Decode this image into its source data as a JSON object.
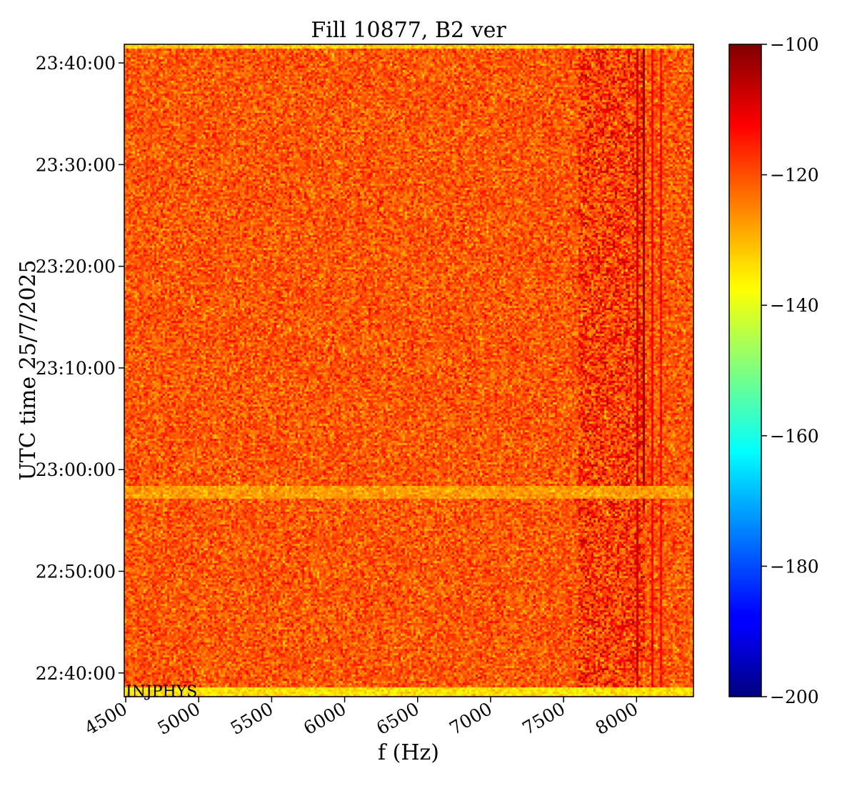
{
  "chart_data": {
    "type": "heatmap",
    "title": "Fill 10877, B2 ver",
    "xlabel": "f (Hz)",
    "ylabel": "UTC time 25/7/2025",
    "xlim": [
      4490,
      8390
    ],
    "x_ticks": [
      4500,
      5000,
      5500,
      6000,
      6500,
      7000,
      7500,
      8000
    ],
    "x_tick_labels": [
      "4500",
      "5000",
      "5500",
      "6000",
      "6500",
      "7000",
      "7500",
      "8000"
    ],
    "ylim": [
      "22:37:40",
      "23:41:50"
    ],
    "y_ticks": [
      "22:40:00",
      "22:50:00",
      "23:00:00",
      "23:10:00",
      "23:20:00",
      "23:30:00",
      "23:40:00"
    ],
    "y_tick_labels": [
      "22:40:00",
      "22:50:00",
      "23:00:00",
      "23:10:00",
      "23:20:00",
      "23:30:00",
      "23:40:00"
    ],
    "colorbar": {
      "min": -200,
      "max": -100,
      "ticks": [
        -200,
        -180,
        -160,
        -140,
        -120,
        -100
      ],
      "tick_labels": [
        "−200",
        "−180",
        "−160",
        "−140",
        "−120",
        "−100"
      ],
      "colormap": "jet"
    },
    "background_level": -121,
    "features": [
      {
        "kind": "band",
        "f_min": 7600,
        "f_max": 8050,
        "level": -110
      },
      {
        "kind": "line",
        "f": 8050,
        "t_min": "22:56:10",
        "t_max": "23:41:50",
        "level": -103
      },
      {
        "kind": "line",
        "f": 8000,
        "t_min": "22:37:40",
        "t_max": "23:41:50",
        "level": -108
      },
      {
        "kind": "line",
        "f": 8110,
        "t_min": "22:37:40",
        "t_max": "23:41:50",
        "level": -112
      },
      {
        "kind": "line",
        "f": 8170,
        "t_min": "22:37:40",
        "t_max": "23:41:50",
        "level": -113
      },
      {
        "kind": "hband",
        "t_min": "22:57:10",
        "t_max": "22:58:20",
        "level": -128
      },
      {
        "kind": "hband",
        "t_min": "22:37:40",
        "t_max": "22:38:30",
        "level": -135
      },
      {
        "kind": "hband",
        "t_min": "23:41:20",
        "t_max": "23:41:50",
        "level": -133
      }
    ],
    "annotation": "INJPHYS"
  }
}
